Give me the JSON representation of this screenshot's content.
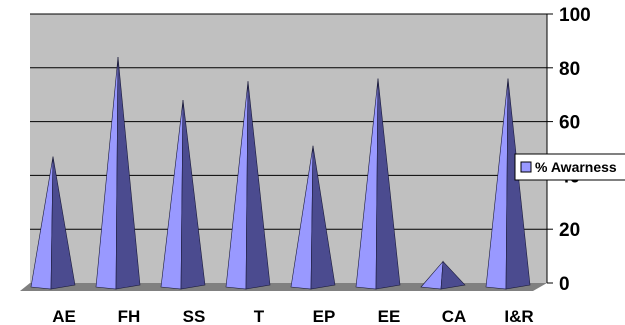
{
  "chart_data": {
    "type": "bar",
    "style": "3d-cone",
    "categories": [
      "AE",
      "FH",
      "SS",
      "T",
      "EP",
      "EE",
      "CA",
      "I&R"
    ],
    "series": [
      {
        "name": "% Awarness",
        "values": [
          47,
          84,
          68,
          75,
          51,
          76,
          8,
          76
        ]
      }
    ],
    "ylim": [
      0,
      100
    ],
    "yticks": [
      0,
      20,
      40,
      60,
      80,
      100
    ],
    "grid": true,
    "legend": "right",
    "colors": {
      "background": "#c0c0c0",
      "floor": "#808080",
      "gridline": "#000000",
      "cone_light": "#9999ff",
      "cone_dark": "#4b4b8f",
      "legend_swatch": "#9999ff"
    }
  }
}
